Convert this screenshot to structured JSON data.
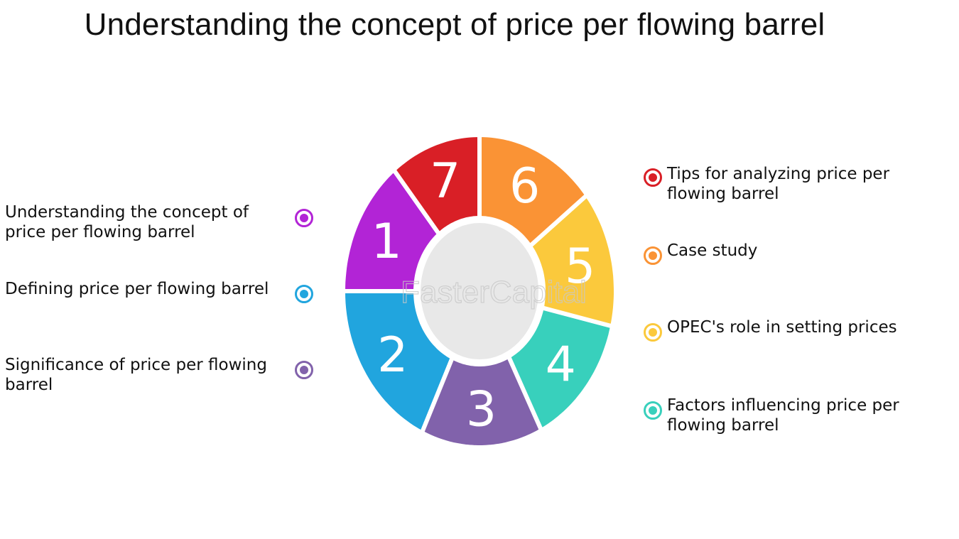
{
  "title": "Understanding the concept of price per flowing barrel",
  "watermark": "FasterCapital",
  "segments": [
    {
      "number": "1",
      "label": "Understanding the concept of price per flowing barrel",
      "color": "#b224d6"
    },
    {
      "number": "2",
      "label": "Defining price per flowing barrel",
      "color": "#21a5de"
    },
    {
      "number": "3",
      "label": "Significance of price per flowing barrel",
      "color": "#8162ab"
    },
    {
      "number": "4",
      "label": "Factors influencing price per flowing barrel",
      "color": "#38d0bc"
    },
    {
      "number": "5",
      "label": "OPEC's role in setting prices",
      "color": "#fbc93c"
    },
    {
      "number": "6",
      "label": "Case study",
      "color": "#fa9335"
    },
    {
      "number": "7",
      "label": "Tips for analyzing price per flowing barrel",
      "color": "#d91f26"
    }
  ],
  "center_color": "#e8e8e8"
}
